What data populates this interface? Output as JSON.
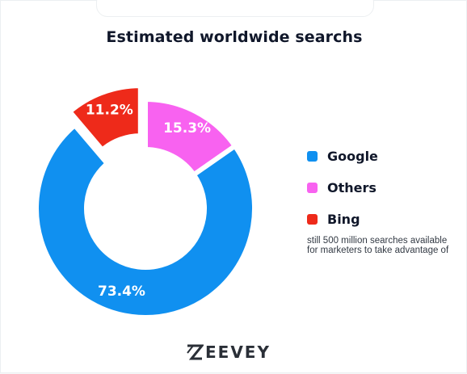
{
  "title": "Estimated worldwide searchs",
  "note": "still 500 million searches available for marketers to take advantage of",
  "logo": {
    "text": "EEVEY",
    "mark_letter": "Z"
  },
  "chart_data": {
    "type": "pie",
    "donut": true,
    "title": "Estimated worldwide searchs",
    "categories": [
      "Google",
      "Others",
      "Bing"
    ],
    "values": [
      73.4,
      15.3,
      11.2
    ],
    "value_labels": [
      "73.4%",
      "15.3%",
      "11.2%"
    ],
    "colors": [
      "#1090f0",
      "#f862f0",
      "#ee2a1a"
    ],
    "exploded": [
      "Bing"
    ],
    "legend_position": "right"
  },
  "legend": [
    {
      "label": "Google",
      "color": "#1090f0"
    },
    {
      "label": "Others",
      "color": "#f862f0"
    },
    {
      "label": "Bing",
      "color": "#ee2a1a"
    }
  ]
}
